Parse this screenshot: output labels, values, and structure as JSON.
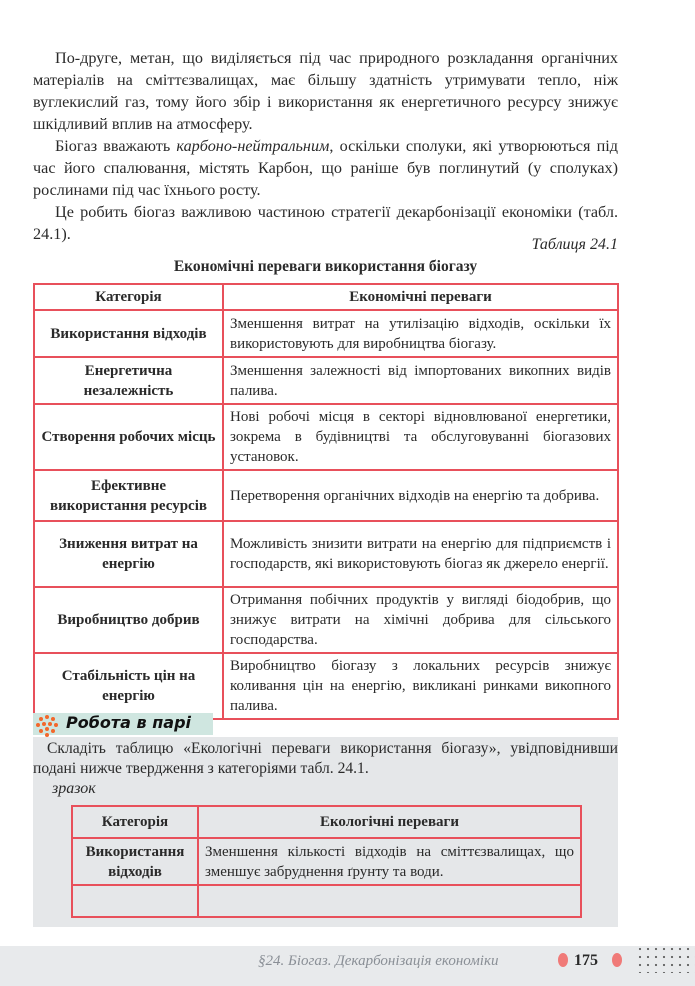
{
  "paragraphs": {
    "p1": "По-друге, метан, що виділяється під час природного розкладання органічних матеріалів на сміттєзвалищах, має більшу здатність утримувати тепло, ніж вуглекислий газ, тому його збір і використання як енергетичного ресурсу знижує шкідливий вплив на атмосферу.",
    "p2_start": "Біогаз вважають ",
    "p2_italic": "карбоно-нейтральним",
    "p2_end": ", оскільки сполуки, які утворюються під час його спалювання, містять Карбон, що раніше був поглинутий (у сполуках) рослинами під час їхнього росту.",
    "p3": "Це робить біогаз важливою частиною стратегії декарбонізації економіки (табл. 24.1)."
  },
  "table1": {
    "caption": "Таблиця 24.1",
    "title": "Економічні переваги використання біогазу",
    "headers": [
      "Категорія",
      "Економічні переваги"
    ],
    "rows": [
      [
        "Використання відходів",
        "Зменшення витрат на утилізацію відходів, оскільки їх використовують для виробництва біогазу."
      ],
      [
        "Енергетична незалежність",
        "Зменшення залежності від імпортованих викопних видів палива."
      ],
      [
        "Створення робочих місць",
        "Нові робочі місця в секторі відновлюваної енергетики, зокрема в будівництві та обслуговуванні біогазових установок."
      ],
      [
        "Ефективне використання ресурсів",
        "Перетворення органічних відходів на енергію та добрива."
      ],
      [
        "Зниження витрат на енергію",
        "Можливість знизити витрати на енергію для підприємств і господарств, які використовують біогаз як джерело енергії."
      ],
      [
        "Виробництво добрив",
        "Отримання побічних продуктів у вигляді біодобрив, що знижує витрати на хімічні добрива для сільського господарства."
      ],
      [
        "Стабільність цін на енергію",
        "Виробництво біогазу з локальних ресурсів знижує коливання цін на енергію, викликані ринками викопного палива."
      ]
    ]
  },
  "pair_work": {
    "title": "Робота в парі",
    "icon": "dots-cluster-icon",
    "task": "Складіть таблицю «Екологічні переваги використання біогазу», увідповіднивши подані нижче твердження з  категоріями табл. 24.1.",
    "sample_label": "зразок",
    "table": {
      "headers": [
        "Категорія",
        "Екологічні переваги"
      ],
      "rows": [
        [
          "Використання відходів",
          "Зменшення кількості відходів на сміттєзвалищах, що зменшує забруднення ґрунту та води."
        ],
        [
          "",
          ""
        ]
      ]
    }
  },
  "footer": {
    "section": "§24. Біогаз. Декарбонізація економіки",
    "page_number": "175"
  },
  "colors": {
    "table_border": "#e8505b",
    "accent": "#f07a78",
    "box_bg": "#e5e7e9",
    "pair_header_bg": "#cfe6e0"
  }
}
